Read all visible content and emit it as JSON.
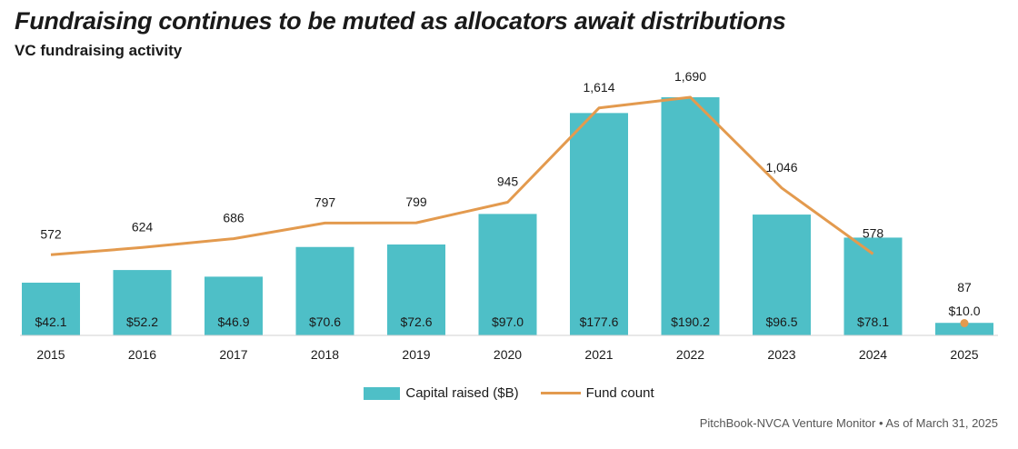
{
  "header": {
    "title": "Fundraising continues to be muted as allocators await distributions",
    "subtitle": "VC fundraising activity"
  },
  "footer": {
    "source": "PitchBook-NVCA Venture Monitor  •  As of March 31, 2025"
  },
  "colors": {
    "bar": "#4ebfc7",
    "line": "#e39a4e"
  },
  "legend": {
    "bar_label": "Capital raised ($B)",
    "line_label": "Fund count"
  },
  "chart_data": {
    "type": "bar",
    "categories": [
      "2015",
      "2016",
      "2017",
      "2018",
      "2019",
      "2020",
      "2021",
      "2022",
      "2023",
      "2024",
      "2025"
    ],
    "series": [
      {
        "name": "Capital raised ($B)",
        "type": "bar",
        "values": [
          42.1,
          52.2,
          46.9,
          70.6,
          72.6,
          97.0,
          177.6,
          190.2,
          96.5,
          78.1,
          10.0
        ],
        "labels": [
          "$42.1",
          "$52.2",
          "$46.9",
          "$70.6",
          "$72.6",
          "$97.0",
          "$177.6",
          "$190.2",
          "$96.5",
          "$78.1",
          "$10.0"
        ]
      },
      {
        "name": "Fund count",
        "type": "line",
        "values": [
          572,
          624,
          686,
          797,
          799,
          945,
          1614,
          1690,
          1046,
          578,
          87
        ],
        "labels": [
          "572",
          "624",
          "686",
          "797",
          "799",
          "945",
          "1,614",
          "1,690",
          "1,046",
          "578",
          "87"
        ]
      }
    ],
    "grid": false,
    "legend_position": "bottom-center"
  }
}
